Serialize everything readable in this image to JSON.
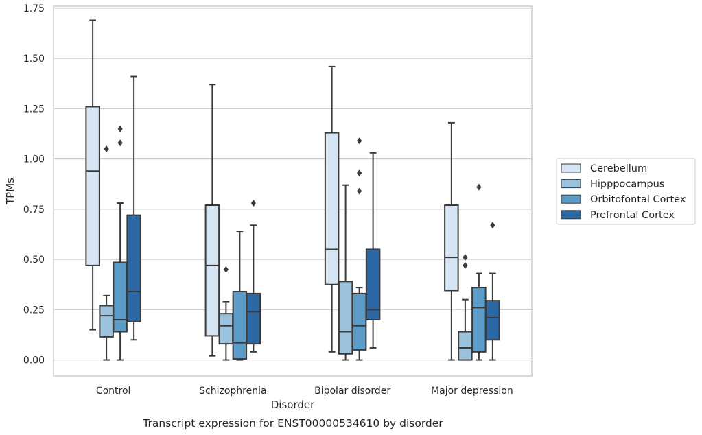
{
  "caption": "Transcript expression for ENST00000534610 by disorder",
  "chart_data": {
    "type": "boxplot",
    "xlabel": "Disorder",
    "ylabel": "TPMs",
    "ylim": [
      -0.08,
      1.76
    ],
    "yticks": [
      "0.00",
      "0.25",
      "0.50",
      "0.75",
      "1.00",
      "1.25",
      "1.50",
      "1.75"
    ],
    "grid": "horizontal",
    "legend_position": "right",
    "categories": [
      "Control",
      "Schizophrenia",
      "Bipolar disorder",
      "Major depression"
    ],
    "series": [
      {
        "name": "Cerebellum",
        "color": "#d5e5f3",
        "boxes": [
          {
            "whislo": 0.15,
            "q1": 0.47,
            "med": 0.94,
            "q3": 1.26,
            "whishi": 1.69,
            "fliers": []
          },
          {
            "whislo": 0.02,
            "q1": 0.12,
            "med": 0.47,
            "q3": 0.77,
            "whishi": 1.37,
            "fliers": []
          },
          {
            "whislo": 0.04,
            "q1": 0.375,
            "med": 0.55,
            "q3": 1.13,
            "whishi": 1.46,
            "fliers": []
          },
          {
            "whislo": 0.0,
            "q1": 0.345,
            "med": 0.51,
            "q3": 0.77,
            "whishi": 1.18,
            "fliers": []
          }
        ]
      },
      {
        "name": "Hipppocampus",
        "color": "#9cc3de",
        "boxes": [
          {
            "whislo": 0.0,
            "q1": 0.115,
            "med": 0.22,
            "q3": 0.27,
            "whishi": 0.32,
            "fliers": [
              1.05
            ]
          },
          {
            "whislo": 0.0,
            "q1": 0.08,
            "med": 0.17,
            "q3": 0.23,
            "whishi": 0.29,
            "fliers": [
              0.45
            ]
          },
          {
            "whislo": 0.0,
            "q1": 0.03,
            "med": 0.14,
            "q3": 0.39,
            "whishi": 0.87,
            "fliers": []
          },
          {
            "whislo": 0.0,
            "q1": 0.0,
            "med": 0.06,
            "q3": 0.14,
            "whishi": 0.3,
            "fliers": [
              0.47,
              0.51
            ]
          }
        ]
      },
      {
        "name": "Orbitofontal Cortex",
        "color": "#5b9cc9",
        "boxes": [
          {
            "whislo": 0.0,
            "q1": 0.14,
            "med": 0.2,
            "q3": 0.485,
            "whishi": 0.78,
            "fliers": [
              1.08,
              1.15
            ]
          },
          {
            "whislo": 0.0,
            "q1": 0.005,
            "med": 0.085,
            "q3": 0.34,
            "whishi": 0.64,
            "fliers": []
          },
          {
            "whislo": 0.0,
            "q1": 0.05,
            "med": 0.17,
            "q3": 0.33,
            "whishi": 0.36,
            "fliers": [
              0.84,
              0.93,
              1.09
            ]
          },
          {
            "whislo": 0.0,
            "q1": 0.04,
            "med": 0.26,
            "q3": 0.36,
            "whishi": 0.43,
            "fliers": [
              0.86
            ]
          }
        ]
      },
      {
        "name": "Prefrontal Cortex",
        "color": "#2b68a5",
        "boxes": [
          {
            "whislo": 0.1,
            "q1": 0.19,
            "med": 0.34,
            "q3": 0.72,
            "whishi": 1.41,
            "fliers": []
          },
          {
            "whislo": 0.04,
            "q1": 0.08,
            "med": 0.24,
            "q3": 0.33,
            "whishi": 0.67,
            "fliers": [
              0.78
            ]
          },
          {
            "whislo": 0.06,
            "q1": 0.2,
            "med": 0.25,
            "q3": 0.55,
            "whishi": 1.03,
            "fliers": []
          },
          {
            "whislo": 0.0,
            "q1": 0.1,
            "med": 0.21,
            "q3": 0.295,
            "whishi": 0.43,
            "fliers": [
              0.67
            ]
          }
        ]
      }
    ]
  }
}
